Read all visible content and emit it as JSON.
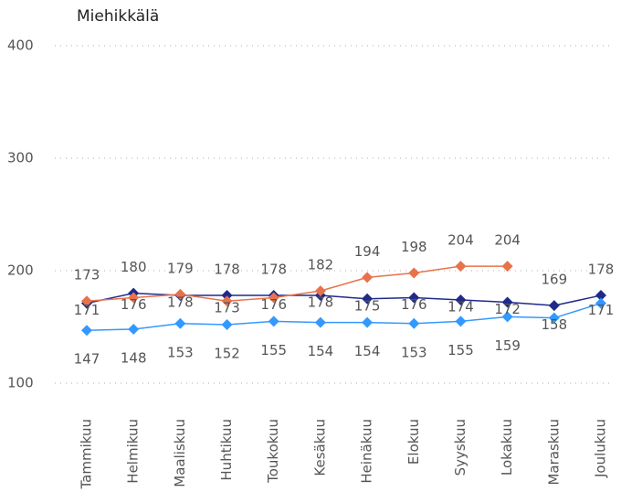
{
  "chart_data": {
    "type": "line",
    "title": "Miehikkälä",
    "categories": [
      "Tammikuu",
      "Helmikuu",
      "Maaliskuu",
      "Huhtikuu",
      "Toukokuu",
      "Kesäkuu",
      "Heinäkuu",
      "Elokuu",
      "Syyskuu",
      "Lokakuu",
      "Maraskuu",
      "Joulukuu"
    ],
    "series": [
      {
        "color": "#1f2a8a",
        "values": [
          171,
          180,
          178,
          178,
          178,
          178,
          175,
          176,
          174,
          172,
          169,
          178
        ]
      },
      {
        "color": "#e8734a",
        "values": [
          173,
          176,
          179,
          173,
          176,
          182,
          194,
          198,
          204,
          204,
          null,
          null
        ]
      },
      {
        "color": "#3399ff",
        "values": [
          147,
          148,
          153,
          152,
          155,
          154,
          154,
          153,
          155,
          159,
          158,
          171
        ]
      }
    ],
    "ylim": [
      100,
      400
    ],
    "yticks": [
      100,
      200,
      300,
      400
    ],
    "grid": true
  }
}
